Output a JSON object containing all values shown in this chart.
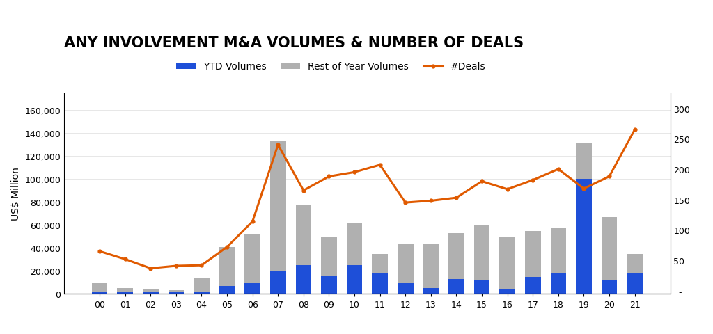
{
  "title": "ANY INVOLVEMENT M&A VOLUMES & NUMBER OF DEALS",
  "ylabel_left": "US$ Million",
  "years": [
    "00",
    "01",
    "02",
    "03",
    "04",
    "05",
    "06",
    "07",
    "08",
    "09",
    "10",
    "11",
    "12",
    "13",
    "14",
    "15",
    "16",
    "17",
    "18",
    "19",
    "20",
    "21"
  ],
  "ytd_volumes": [
    1500,
    1500,
    1500,
    1500,
    1500,
    7000,
    9000,
    20000,
    25000,
    16000,
    25000,
    18000,
    10000,
    5000,
    13000,
    12000,
    4000,
    15000,
    18000,
    100000,
    12000,
    18000
  ],
  "rest_volumes": [
    7500,
    3500,
    3000,
    2000,
    12000,
    34000,
    43000,
    113000,
    52000,
    34000,
    37000,
    17000,
    34000,
    38000,
    40000,
    48000,
    45000,
    40000,
    40000,
    32000,
    55000,
    17000
  ],
  "deals_values": [
    65,
    52,
    37,
    41,
    42,
    72,
    114,
    240,
    165,
    188,
    195,
    207,
    145,
    148,
    153,
    180,
    167,
    182,
    200,
    168,
    188,
    265
  ],
  "bar_color_ytd": "#1e4fd8",
  "bar_color_rest": "#b0b0b0",
  "line_color": "#e05a00",
  "title_fontsize": 15,
  "legend_fontsize": 10,
  "tick_fontsize": 9,
  "ylabel_fontsize": 10,
  "background_color": "#FFFFFF",
  "ylim_left": [
    0,
    175000
  ],
  "ylim_right": [
    -5,
    325
  ],
  "yticks_left": [
    0,
    20000,
    40000,
    60000,
    80000,
    100000,
    120000,
    140000,
    160000
  ],
  "yticks_right_vals": [
    0,
    50,
    100,
    150,
    200,
    250,
    300
  ],
  "yticks_right_labels": [
    "",
    "50",
    "100",
    "150",
    "200",
    "250",
    "300"
  ],
  "figsize": [
    10.24,
    4.81
  ],
  "dpi": 100
}
